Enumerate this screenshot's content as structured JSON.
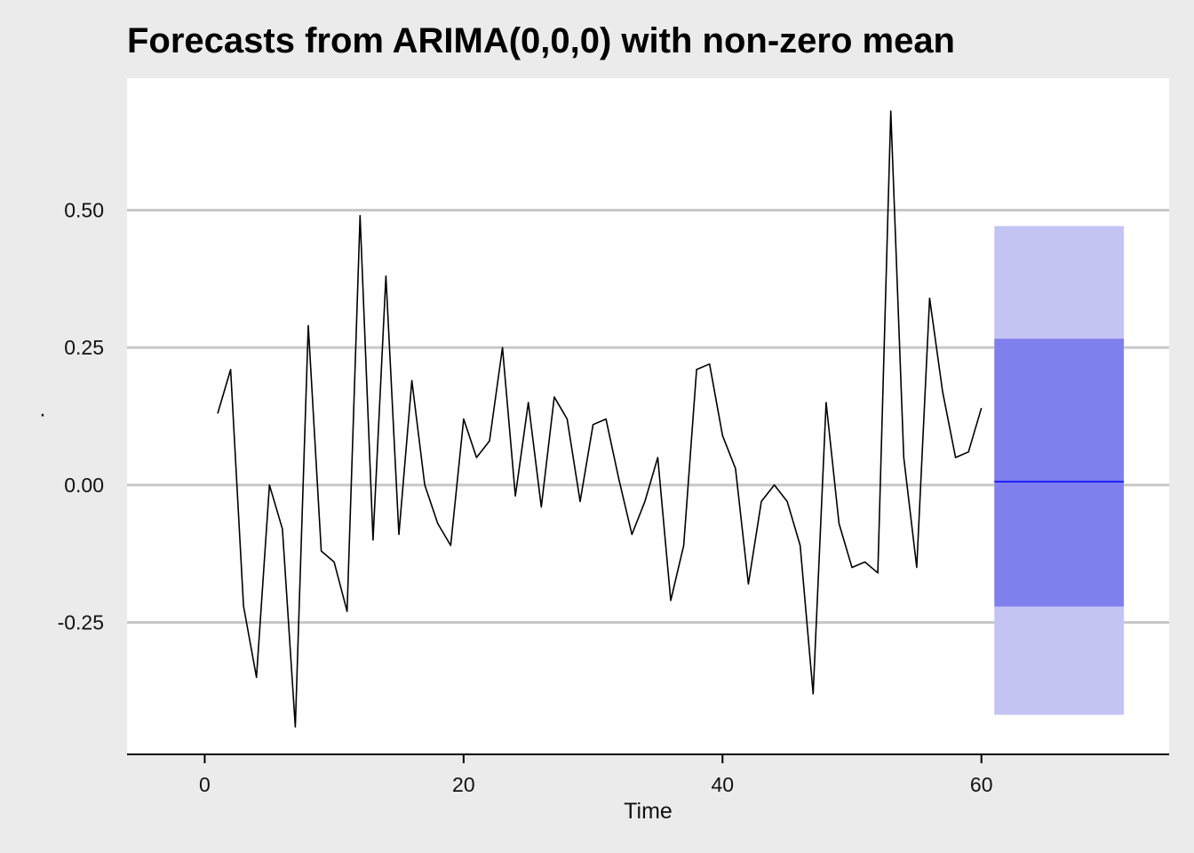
{
  "chart_data": {
    "type": "line",
    "title": "Forecasts from ARIMA(0,0,0) with non-zero mean",
    "xlabel": "Time",
    "ylabel": ".",
    "xlim": [
      -6,
      74.5
    ],
    "ylim": [
      -0.49,
      0.74
    ],
    "x_ticks": [
      0,
      20,
      40,
      60
    ],
    "x_tick_labels": [
      "0",
      "20",
      "40",
      "60"
    ],
    "y_ticks": [
      0.5,
      0.25,
      0.0,
      -0.25
    ],
    "y_tick_labels": [
      "0.50",
      "0.25",
      "0.00",
      "-0.25"
    ],
    "grid": "horizontal",
    "series": [
      {
        "x": [
          1,
          2,
          3,
          4,
          5,
          6,
          7,
          8,
          9,
          10,
          11,
          12,
          13,
          14,
          15,
          16,
          17,
          18,
          19,
          20,
          21,
          22,
          23,
          24,
          25,
          26,
          27,
          28,
          29,
          30,
          31,
          32,
          33,
          34,
          35,
          36,
          37,
          38,
          39,
          40,
          41,
          42,
          43,
          44,
          45,
          46,
          47,
          48,
          49,
          50,
          51,
          52,
          53,
          54,
          55,
          56,
          57,
          58,
          59,
          60
        ],
        "values": [
          0.13,
          0.21,
          -0.22,
          -0.35,
          0.0,
          -0.08,
          -0.44,
          0.29,
          -0.12,
          -0.14,
          -0.23,
          0.49,
          -0.1,
          0.38,
          -0.09,
          0.19,
          0.0,
          -0.07,
          -0.11,
          0.12,
          0.05,
          0.08,
          0.25,
          -0.02,
          0.15,
          -0.04,
          0.16,
          0.12,
          -0.03,
          0.11,
          0.12,
          0.01,
          -0.09,
          -0.03,
          0.05,
          -0.21,
          -0.11,
          0.21,
          0.22,
          0.09,
          0.03,
          -0.18,
          -0.03,
          0.0,
          -0.03,
          -0.11,
          -0.38,
          0.15,
          -0.07,
          -0.15,
          -0.14,
          -0.16,
          0.68,
          0.05,
          -0.15,
          0.34,
          0.17,
          0.05,
          0.06,
          0.14
        ],
        "color": "#000000"
      }
    ],
    "forecast": {
      "x_start": 61,
      "x_end": 71,
      "mean": 0.006,
      "lower80": -0.221,
      "upper80": 0.266,
      "lower95": -0.418,
      "upper95": 0.471,
      "mean_color": "#0000ff",
      "band80_color": "#7f7fed",
      "band95_color": "#c3c3f4"
    },
    "colors": {
      "panel_background": "#ffffff",
      "plot_background": "#ebebeb",
      "grid": "#c8c8c8"
    }
  }
}
